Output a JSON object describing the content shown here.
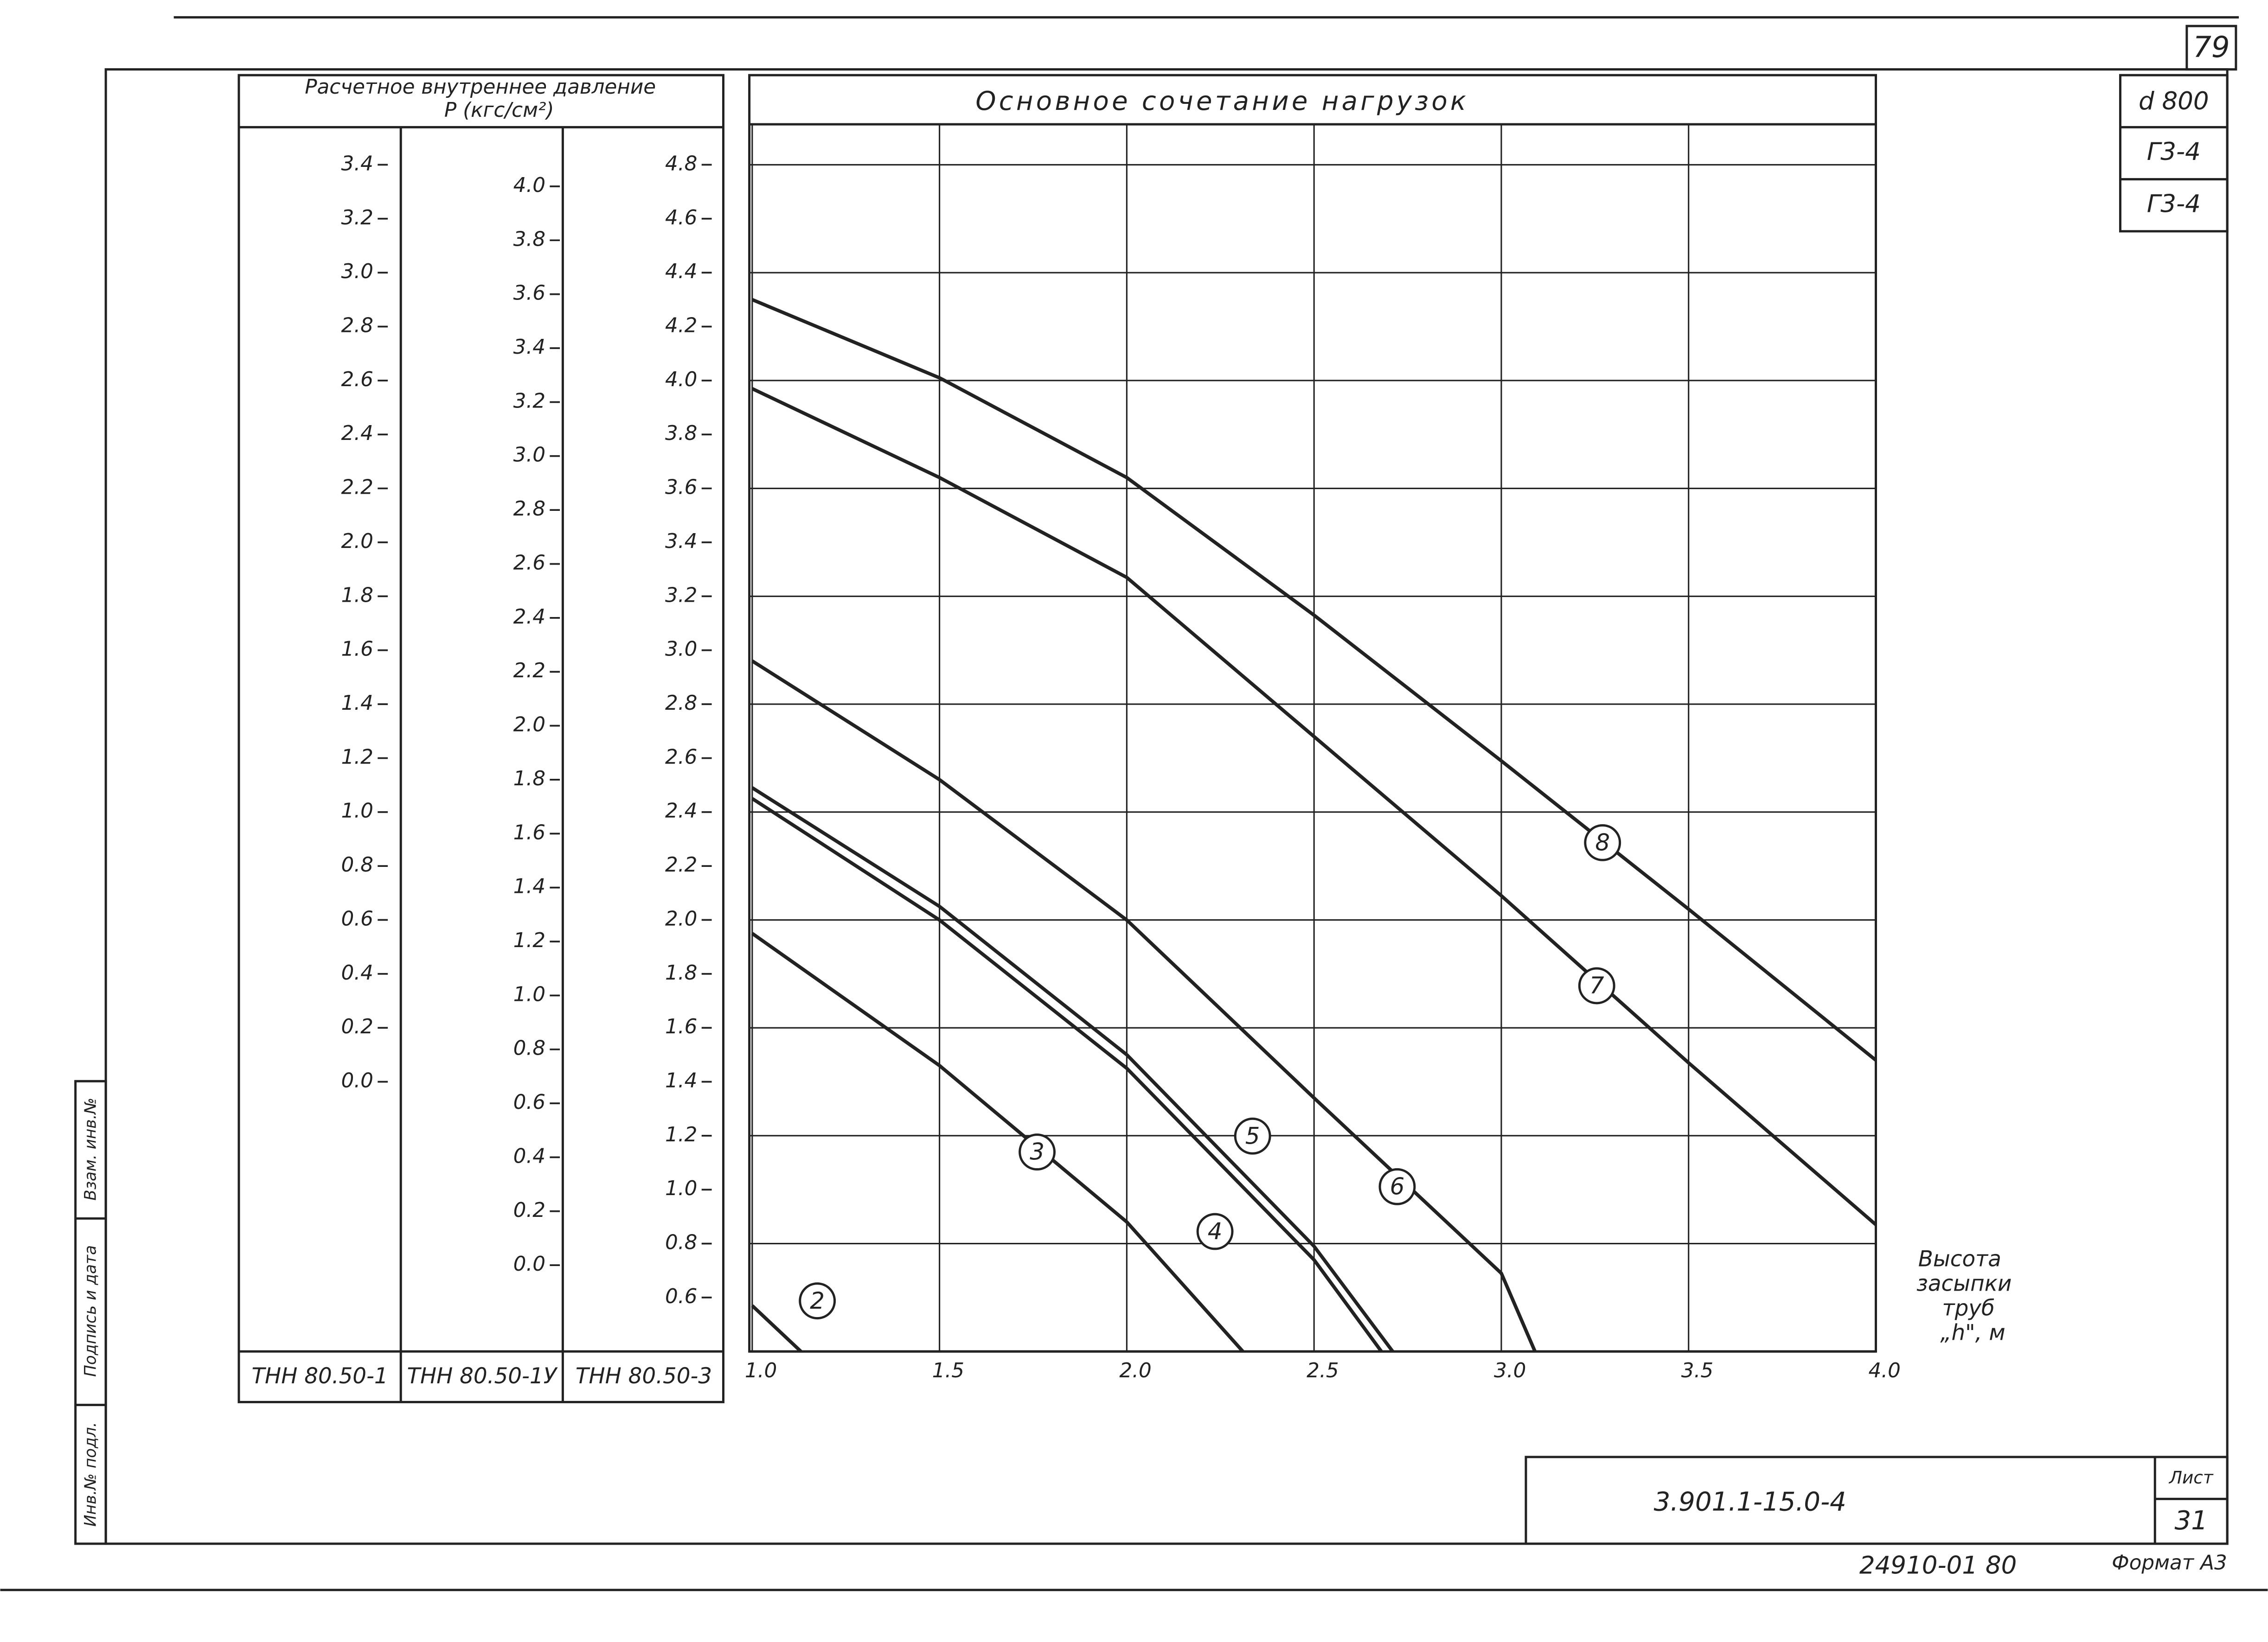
{
  "chart_data": {
    "type": "line",
    "title": "Основное сочетание нагрузок",
    "ylabel": [
      "Расчетное внутреннее давление",
      "P (кгс/см²)"
    ],
    "y_axis_name": "ТНН 80.50-3",
    "xlabel": [
      "Высота",
      "засыпки",
      "труб",
      "„h\", м"
    ],
    "xlim": [
      1.0,
      4.0
    ],
    "xticks": [
      {
        "value": 1,
        "label": "1.0"
      },
      1.5,
      {
        "value": 2,
        "label": "2.0"
      },
      2.5,
      {
        "value": 3,
        "label": "3.0"
      },
      3.5,
      {
        "value": 4,
        "label": "4.0"
      }
    ],
    "ylim": [
      0.4,
      4.95
    ],
    "yticks": [
      0.6,
      0.8,
      {
        "value": 1,
        "label": "1.0"
      },
      1.2,
      1.4,
      1.6,
      1.8,
      {
        "value": 2,
        "label": "2.0"
      },
      2.2,
      2.4,
      2.6,
      2.8,
      {
        "value": 3,
        "label": "3.0"
      },
      3.2,
      3.4,
      3.6,
      3.8,
      {
        "value": 4,
        "label": "4.0"
      },
      4.2,
      4.4,
      4.6,
      4.8
    ],
    "grid": true,
    "pressure_axes": [
      {
        "name": "ТНН 80.50-1",
        "ylim": [
          -1.0,
          3.55
        ],
        "yticks": [
          {
            "value": 0,
            "label": "0.0"
          },
          0.2,
          0.4,
          0.6,
          0.8,
          {
            "value": 1,
            "label": "1.0"
          },
          1.2,
          1.4,
          1.6,
          1.8,
          {
            "value": 2,
            "label": "2.0"
          },
          2.2,
          2.4,
          2.6,
          2.8,
          {
            "value": 3,
            "label": "3.0"
          },
          3.2,
          3.4
        ]
      },
      {
        "name": "ТНН 80.50-1У",
        "ylim": [
          -0.32,
          4.23
        ],
        "yticks": [
          {
            "value": 0,
            "label": "0.0"
          },
          0.2,
          0.4,
          0.6,
          0.8,
          {
            "value": 1,
            "label": "1.0"
          },
          1.2,
          1.4,
          1.6,
          1.8,
          {
            "value": 2,
            "label": "2.0"
          },
          2.2,
          2.4,
          2.6,
          2.8,
          {
            "value": 3,
            "label": "3.0"
          },
          3.2,
          3.4,
          3.6,
          3.8,
          {
            "value": 4,
            "label": "4.0"
          }
        ]
      }
    ],
    "series": [
      {
        "name": "2",
        "color": "#222222",
        "x": [
          1.0,
          1.13
        ],
        "values": [
          0.57,
          0.4
        ]
      },
      {
        "name": "3",
        "color": "#222222",
        "x": [
          1.0,
          1.5,
          2.0,
          2.31
        ],
        "values": [
          1.95,
          1.46,
          0.88,
          0.4
        ]
      },
      {
        "name": "4",
        "color": "#222222",
        "x": [
          1.0,
          1.5,
          2.0,
          2.5,
          2.68
        ],
        "values": [
          2.45,
          2.0,
          1.45,
          0.74,
          0.4
        ]
      },
      {
        "name": "5",
        "color": "#222222",
        "x": [
          1.0,
          1.5,
          2.0,
          2.5,
          2.71
        ],
        "values": [
          2.49,
          2.05,
          1.5,
          0.79,
          0.4
        ]
      },
      {
        "name": "6",
        "color": "#222222",
        "x": [
          1.0,
          1.5,
          2.0,
          2.5,
          3.0,
          3.09
        ],
        "values": [
          2.96,
          2.52,
          2.0,
          1.34,
          0.69,
          0.4
        ]
      },
      {
        "name": "7",
        "color": "#222222",
        "x": [
          1.0,
          1.5,
          2.0,
          2.5,
          3.0,
          3.5,
          4.0
        ],
        "values": [
          3.97,
          3.64,
          3.27,
          2.68,
          2.09,
          1.47,
          0.87
        ]
      },
      {
        "name": "8",
        "color": "#222222",
        "x": [
          1.0,
          1.5,
          2.0,
          2.5,
          3.0,
          3.5,
          4.0
        ],
        "values": [
          4.3,
          4.01,
          3.64,
          3.13,
          2.59,
          2.04,
          1.48
        ]
      }
    ]
  },
  "sheet": {
    "page_number": "79",
    "stamp_top": [
      "d 800",
      "Г3-4",
      "Г3-4"
    ],
    "designation": "3.901.1-15.0-4",
    "sheet_label": "Лист",
    "sheet_number": "31",
    "code": "24910-01 80",
    "format": "Формат А3",
    "side_fields": [
      "Инв.№ подл.",
      "Подпись и дата",
      "Взам. инв.№"
    ]
  }
}
